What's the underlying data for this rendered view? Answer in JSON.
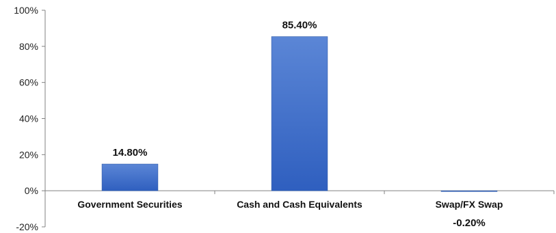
{
  "chart_data": {
    "type": "bar",
    "categories": [
      "Government Securities",
      "Cash and Cash Equivalents",
      "Swap/FX Swap"
    ],
    "values": [
      14.8,
      85.4,
      -0.2
    ],
    "data_labels": [
      "14.80%",
      "85.40%",
      "-0.20%"
    ],
    "title": "",
    "xlabel": "",
    "ylabel": "",
    "ylim": [
      -20,
      100
    ],
    "yticks": [
      -20,
      0,
      20,
      40,
      60,
      80,
      100
    ],
    "ytick_labels": [
      "-20%",
      "0%",
      "20%",
      "40%",
      "60%",
      "80%",
      "100%"
    ],
    "grid": false,
    "legend": "none",
    "bar_color": "#4472C4"
  }
}
